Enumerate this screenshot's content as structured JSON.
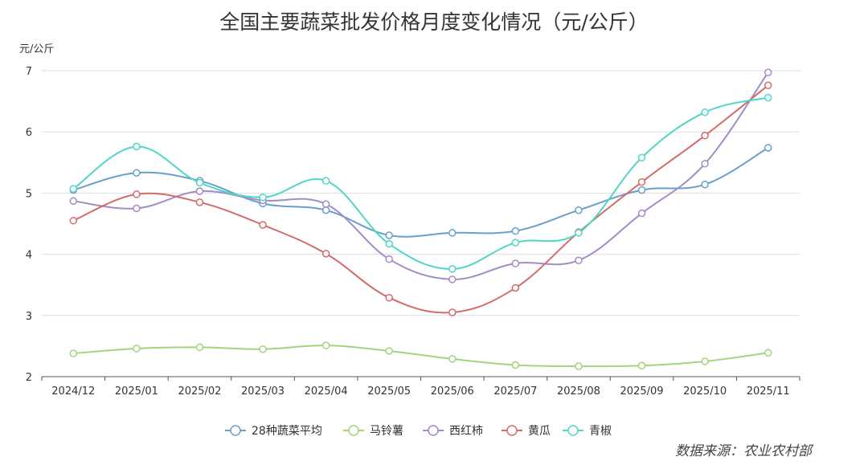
{
  "chart_data": {
    "type": "line",
    "title": "全国主要蔬菜批发价格月度变化情况（元/公斤）",
    "ylabel": "元/公斤",
    "xlabel": "",
    "ylim": [
      2,
      7
    ],
    "yticks": [
      "2",
      "3",
      "4",
      "5",
      "6",
      "7"
    ],
    "grid": true,
    "legend_position": "bottom",
    "categories": [
      "2024/12",
      "2025/01",
      "2025/02",
      "2025/03",
      "2025/04",
      "2025/05",
      "2025/06",
      "2025/07",
      "2025/08",
      "2025/09",
      "2025/10",
      "2025/11"
    ],
    "series": [
      {
        "name": "28种蔬菜平均",
        "color": "#6a9fc8",
        "values": [
          5.05,
          5.33,
          5.2,
          4.83,
          4.72,
          4.31,
          4.35,
          4.38,
          4.72,
          5.05,
          5.14,
          5.74
        ]
      },
      {
        "name": "马铃薯",
        "color": "#9fd57e",
        "values": [
          2.38,
          2.46,
          2.48,
          2.45,
          2.51,
          2.42,
          2.29,
          2.19,
          2.17,
          2.18,
          2.25,
          2.39
        ]
      },
      {
        "name": "西红柿",
        "color": "#a58ac8",
        "values": [
          4.87,
          4.75,
          5.03,
          4.88,
          4.82,
          3.92,
          3.59,
          3.85,
          3.9,
          4.67,
          5.48,
          6.97
        ]
      },
      {
        "name": "黄瓜",
        "color": "#d46a6a",
        "values": [
          4.55,
          4.98,
          4.85,
          4.48,
          4.01,
          3.29,
          3.05,
          3.45,
          4.36,
          5.18,
          5.94,
          6.76
        ]
      },
      {
        "name": "青椒",
        "color": "#4fd6c8",
        "values": [
          5.07,
          5.76,
          5.17,
          4.93,
          5.2,
          4.17,
          3.76,
          4.19,
          4.35,
          5.58,
          6.32,
          6.56
        ]
      }
    ]
  },
  "source": "数据来源：农业农村部"
}
